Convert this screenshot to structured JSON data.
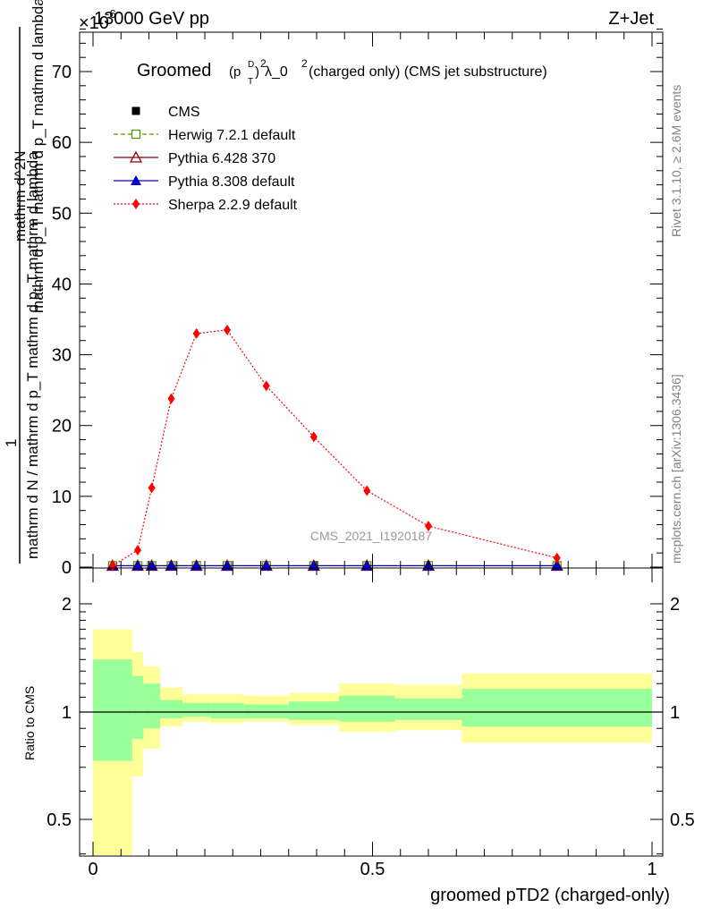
{
  "header": {
    "left_label": "13000 GeV pp",
    "right_label": "Z+Jet",
    "exponent": "×10",
    "exponent_power": "-6"
  },
  "side_labels": {
    "rivet": "Rivet 3.1.10, ≥ 2.6M events",
    "mcplots": "mcplots.cern.ch [arXiv:1306.3436]"
  },
  "watermark": "CMS_2021_I1920187",
  "chart_data": [
    {
      "type": "line",
      "panel": "main",
      "title_main": "Groomed",
      "title_p": "(p",
      "title_sup_d": "D",
      "title_sub_t": "T",
      "title_close": ")",
      "title_sup_2": "2",
      "title_rest": " λ_0",
      "title_sup_2b": "2",
      "title_tail": "  (charged only) (CMS jet substructure)",
      "ylabel_numer": "1",
      "ylabel_denom": "mathrm d N / mathrm d p_T mathrm d p_T mathrm d lambda",
      "ylabel_main": "mathrm d N",
      "ylabel_d": "mathrm d^2N",
      "xlim": [
        0,
        1
      ],
      "ylim": [
        0,
        76
      ],
      "yticks": [
        0,
        10,
        20,
        30,
        40,
        50,
        60,
        70
      ],
      "legend_position": "top-left",
      "series": [
        {
          "name": "CMS",
          "color": "#000000",
          "marker": "square-filled",
          "line": "none",
          "x": [
            0.035,
            0.08,
            0.105,
            0.14,
            0.185,
            0.24,
            0.31,
            0.395,
            0.49,
            0.6,
            0.83
          ],
          "y": [
            0.2,
            0.2,
            0.2,
            0.2,
            0.2,
            0.2,
            0.2,
            0.2,
            0.2,
            0.2,
            0.2
          ]
        },
        {
          "name": "Herwig 7.2.1 default",
          "color": "#4e9a06",
          "marker": "square-open",
          "line": "dashed",
          "x": [
            0.035,
            0.08,
            0.105,
            0.14,
            0.185,
            0.24,
            0.31,
            0.395,
            0.49,
            0.6,
            0.83
          ],
          "y": [
            0.2,
            0.2,
            0.2,
            0.2,
            0.2,
            0.2,
            0.2,
            0.2,
            0.2,
            0.2,
            0.2
          ]
        },
        {
          "name": "Pythia 6.428 370",
          "color": "#8b0000",
          "marker": "triangle-open",
          "line": "solid",
          "x": [
            0.035,
            0.08,
            0.105,
            0.14,
            0.185,
            0.24,
            0.31,
            0.395,
            0.49,
            0.6,
            0.83
          ],
          "y": [
            0.2,
            0.2,
            0.2,
            0.2,
            0.2,
            0.2,
            0.2,
            0.2,
            0.2,
            0.2,
            0.2
          ]
        },
        {
          "name": "Pythia 8.308 default",
          "color": "#0000cc",
          "marker": "triangle-filled",
          "line": "solid",
          "x": [
            0.035,
            0.08,
            0.105,
            0.14,
            0.185,
            0.24,
            0.31,
            0.395,
            0.49,
            0.6,
            0.83
          ],
          "y": [
            0.2,
            0.2,
            0.2,
            0.2,
            0.2,
            0.2,
            0.2,
            0.2,
            0.2,
            0.2,
            0.2
          ]
        },
        {
          "name": "Sherpa 2.2.9 default",
          "color": "#ff0000",
          "marker": "diamond-filled",
          "line": "dotted",
          "x": [
            0.035,
            0.08,
            0.105,
            0.14,
            0.185,
            0.24,
            0.31,
            0.395,
            0.49,
            0.6,
            0.83
          ],
          "y": [
            0.2,
            2.4,
            11.2,
            23.8,
            33.0,
            33.5,
            25.6,
            18.4,
            10.8,
            5.8,
            1.3
          ]
        }
      ]
    },
    {
      "type": "area",
      "panel": "ratio",
      "ylabel": "Ratio to CMS",
      "xlabel": "groomed pTD2 (charged-only)",
      "xlim": [
        0,
        1
      ],
      "ylim": [
        0.35,
        2.3
      ],
      "yticks": [
        0.5,
        1,
        2
      ],
      "ytick_labels": [
        "0.5",
        "1",
        "2"
      ],
      "xticks": [
        0,
        0.5,
        1
      ],
      "xtick_labels": [
        "0",
        "0.5",
        "1"
      ],
      "bins": [
        0,
        0.07,
        0.09,
        0.12,
        0.16,
        0.21,
        0.27,
        0.35,
        0.44,
        0.54,
        0.66,
        1.0
      ],
      "band_outer": {
        "color": "#ffff99",
        "lo": [
          0.3,
          0.66,
          0.79,
          0.91,
          0.94,
          0.93,
          0.94,
          0.92,
          0.88,
          0.89,
          0.82
        ],
        "hi": [
          1.7,
          1.47,
          1.34,
          1.17,
          1.12,
          1.12,
          1.11,
          1.13,
          1.2,
          1.19,
          1.28
        ]
      },
      "band_inner": {
        "color": "#99ff99",
        "lo": [
          0.73,
          0.84,
          0.9,
          0.96,
          0.97,
          0.96,
          0.96,
          0.95,
          0.94,
          0.95,
          0.91
        ],
        "hi": [
          1.4,
          1.26,
          1.2,
          1.08,
          1.06,
          1.06,
          1.05,
          1.07,
          1.11,
          1.09,
          1.16
        ]
      },
      "reference": 1
    }
  ]
}
